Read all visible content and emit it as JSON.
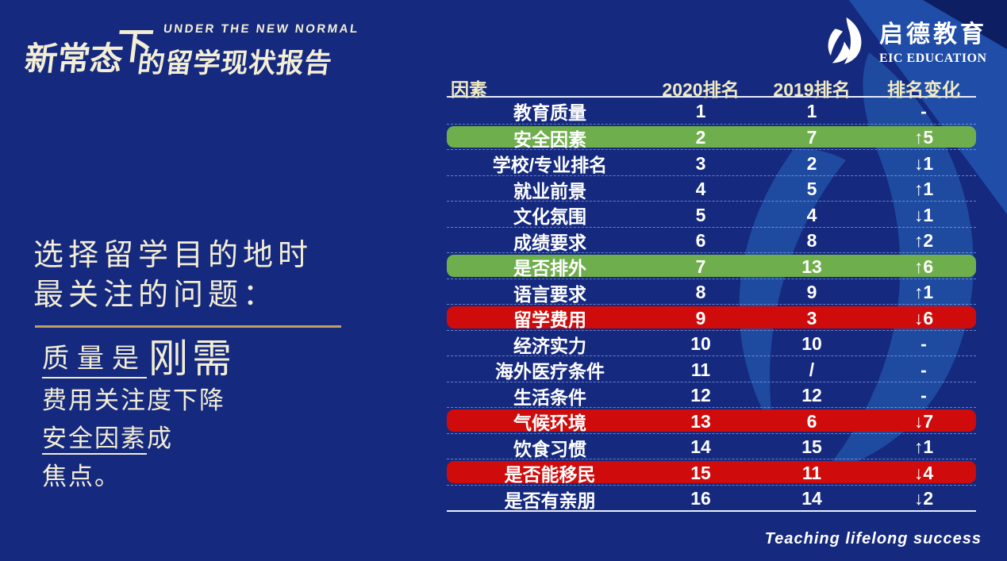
{
  "slide": {
    "brand": {
      "cn_part1": "新常态",
      "cn_part2": "下",
      "en_tagline": "UNDER THE NEW NORMAL",
      "cn_part3": "的留学现状报告"
    },
    "logo": {
      "cn": "启德教育",
      "en": "EIC EDUCATION"
    },
    "left_panel": {
      "heading_line1": "选择留学目的地时",
      "heading_line2": "最关注的问题：",
      "line1_underlined": "质量是",
      "line1_emphasis": "刚需",
      "line2": "费用关注度下降",
      "line3_underlined": "安全因素",
      "line3_rest": "成",
      "line4": "焦点。"
    },
    "footer_slogan": "Teaching lifelong success"
  },
  "chart_data": {
    "type": "table",
    "title": "选择留学目的地时最关注的问题：2020排名 vs 2019排名",
    "columns": [
      "因素",
      "2020排名",
      "2019排名",
      "排名变化"
    ],
    "rows": [
      {
        "factor": "教育质量",
        "rank2020": "1",
        "rank2019": "1",
        "change": "-",
        "highlight": "none"
      },
      {
        "factor": "安全因素",
        "rank2020": "2",
        "rank2019": "7",
        "change": "↑5",
        "highlight": "green"
      },
      {
        "factor": "学校/专业排名",
        "rank2020": "3",
        "rank2019": "2",
        "change": "↓1",
        "highlight": "none"
      },
      {
        "factor": "就业前景",
        "rank2020": "4",
        "rank2019": "5",
        "change": "↑1",
        "highlight": "none"
      },
      {
        "factor": "文化氛围",
        "rank2020": "5",
        "rank2019": "4",
        "change": "↓1",
        "highlight": "none"
      },
      {
        "factor": "成绩要求",
        "rank2020": "6",
        "rank2019": "8",
        "change": "↑2",
        "highlight": "none"
      },
      {
        "factor": "是否排外",
        "rank2020": "7",
        "rank2019": "13",
        "change": "↑6",
        "highlight": "green"
      },
      {
        "factor": "语言要求",
        "rank2020": "8",
        "rank2019": "9",
        "change": "↑1",
        "highlight": "none"
      },
      {
        "factor": "留学费用",
        "rank2020": "9",
        "rank2019": "3",
        "change": "↓6",
        "highlight": "red"
      },
      {
        "factor": "经济实力",
        "rank2020": "10",
        "rank2019": "10",
        "change": "-",
        "highlight": "none"
      },
      {
        "factor": "海外医疗条件",
        "rank2020": "11",
        "rank2019": "/",
        "change": "-",
        "highlight": "none"
      },
      {
        "factor": "生活条件",
        "rank2020": "12",
        "rank2019": "12",
        "change": "-",
        "highlight": "none"
      },
      {
        "factor": "气候环境",
        "rank2020": "13",
        "rank2019": "6",
        "change": "↓7",
        "highlight": "red"
      },
      {
        "factor": "饮食习惯",
        "rank2020": "14",
        "rank2019": "15",
        "change": "↑1",
        "highlight": "none"
      },
      {
        "factor": "是否能移民",
        "rank2020": "15",
        "rank2019": "11",
        "change": "↓4",
        "highlight": "red"
      },
      {
        "factor": "是否有亲朋",
        "rank2020": "16",
        "rank2019": "14",
        "change": "↓2",
        "highlight": "none"
      }
    ],
    "legend_position": "none",
    "grid": "dashed-row-separators",
    "colors": {
      "highlight_green": "#6fae4c",
      "highlight_red": "#cf0b0b",
      "background": "#15297f",
      "accent_cream": "#f3eed4",
      "gold_rule": "#c3a05e",
      "header_text": "#efeac2"
    }
  }
}
